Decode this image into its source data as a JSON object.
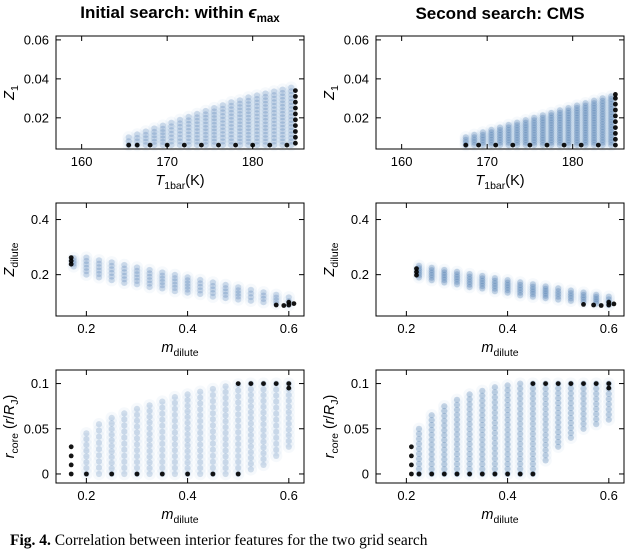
{
  "titles": {
    "left": [
      {
        "t": "Initial search: within "
      },
      {
        "t": "ϵ",
        "i": true
      },
      {
        "t": "max",
        "sub": true
      }
    ],
    "right": [
      {
        "t": "Second search: CMS"
      }
    ]
  },
  "caption": {
    "lead": "Fig. 4.",
    "text": "Correlation between interior features for the two grid search"
  },
  "colors": {
    "point": "#3a6ea8",
    "halo": "#5b8fc4",
    "black": "#000000",
    "axis": "#000000"
  },
  "chart_data": [
    {
      "type": "scatter",
      "panel": "initial-Z1-vs-T1bar",
      "xlabel_tokens": [
        {
          "t": "T",
          "i": true
        },
        {
          "t": "1bar",
          "sub": true
        },
        {
          "t": "(K)"
        }
      ],
      "ylabel_tokens": [
        {
          "t": "Z",
          "i": true
        },
        {
          "t": "1",
          "sub": true
        }
      ],
      "xlim": [
        157,
        186
      ],
      "ylim": [
        0.004,
        0.062
      ],
      "xticks": {
        "v": [
          160,
          170,
          180
        ],
        "l": [
          "160",
          "170",
          "180"
        ]
      },
      "yticks": {
        "v": [
          0.02,
          0.04,
          0.06
        ],
        "l": [
          "0.02",
          "0.04",
          "0.06"
        ]
      },
      "dy": 0.0018,
      "alpha": 0.2,
      "columns": [
        [
          165.5,
          0.006,
          0.01
        ],
        [
          166.5,
          0.006,
          0.0115
        ],
        [
          167.5,
          0.006,
          0.013
        ],
        [
          168.5,
          0.006,
          0.0145
        ],
        [
          169.5,
          0.006,
          0.016
        ],
        [
          170.5,
          0.006,
          0.0175
        ],
        [
          171.5,
          0.006,
          0.019
        ],
        [
          172.5,
          0.006,
          0.0205
        ],
        [
          173.5,
          0.006,
          0.022
        ],
        [
          174.5,
          0.006,
          0.0235
        ],
        [
          175.5,
          0.006,
          0.025
        ],
        [
          176.5,
          0.006,
          0.0265
        ],
        [
          177.5,
          0.006,
          0.028
        ],
        [
          178.5,
          0.006,
          0.029
        ],
        [
          179.5,
          0.006,
          0.0305
        ],
        [
          180.5,
          0.006,
          0.0315
        ],
        [
          181.5,
          0.006,
          0.0325
        ],
        [
          182.5,
          0.006,
          0.0335
        ],
        [
          183.5,
          0.006,
          0.0345
        ],
        [
          184.5,
          0.006,
          0.0355
        ]
      ],
      "black_points": [
        [
          165.5,
          0.006
        ],
        [
          166.5,
          0.006
        ],
        [
          168,
          0.006
        ],
        [
          170,
          0.006
        ],
        [
          172,
          0.006
        ],
        [
          174,
          0.006
        ],
        [
          176,
          0.006
        ],
        [
          178,
          0.006
        ],
        [
          180,
          0.006
        ],
        [
          182,
          0.006
        ],
        [
          184,
          0.006
        ],
        [
          185,
          0.007
        ],
        [
          185,
          0.01
        ],
        [
          185,
          0.013
        ],
        [
          185,
          0.016
        ],
        [
          185,
          0.019
        ],
        [
          185,
          0.022
        ],
        [
          185,
          0.025
        ],
        [
          185,
          0.028
        ],
        [
          185,
          0.031
        ],
        [
          185,
          0.034
        ]
      ]
    },
    {
      "type": "scatter",
      "panel": "cms-Z1-vs-T1bar",
      "xlabel_tokens": [
        {
          "t": "T",
          "i": true
        },
        {
          "t": "1bar",
          "sub": true
        },
        {
          "t": "(K)"
        }
      ],
      "ylabel_tokens": [
        {
          "t": "Z",
          "i": true
        },
        {
          "t": "1",
          "sub": true
        }
      ],
      "xlim": [
        157,
        186
      ],
      "ylim": [
        0.004,
        0.062
      ],
      "xticks": {
        "v": [
          160,
          170,
          180
        ],
        "l": [
          "160",
          "170",
          "180"
        ]
      },
      "yticks": {
        "v": [
          0.02,
          0.04,
          0.06
        ],
        "l": [
          "0.02",
          "0.04",
          "0.06"
        ]
      },
      "dy": 0.0013,
      "alpha": 0.26,
      "columns": [
        [
          167.5,
          0.006,
          0.01
        ],
        [
          168.5,
          0.006,
          0.0113
        ],
        [
          169.5,
          0.006,
          0.0125
        ],
        [
          170.5,
          0.006,
          0.0138
        ],
        [
          171.5,
          0.006,
          0.015
        ],
        [
          172.5,
          0.006,
          0.0163
        ],
        [
          173.5,
          0.006,
          0.0175
        ],
        [
          174.5,
          0.006,
          0.0188
        ],
        [
          175.5,
          0.006,
          0.02
        ],
        [
          176.5,
          0.006,
          0.0213
        ],
        [
          177.5,
          0.006,
          0.0225
        ],
        [
          178.5,
          0.006,
          0.0238
        ],
        [
          179.5,
          0.006,
          0.025
        ],
        [
          180.5,
          0.006,
          0.0263
        ],
        [
          181.5,
          0.006,
          0.0275
        ],
        [
          182.5,
          0.006,
          0.0288
        ],
        [
          183.5,
          0.006,
          0.03
        ],
        [
          184.5,
          0.006,
          0.031
        ]
      ],
      "black_points": [
        [
          167.5,
          0.006
        ],
        [
          169,
          0.006
        ],
        [
          171,
          0.006
        ],
        [
          173,
          0.006
        ],
        [
          175,
          0.006
        ],
        [
          177,
          0.006
        ],
        [
          179,
          0.006
        ],
        [
          181,
          0.006
        ],
        [
          183,
          0.006
        ],
        [
          185,
          0.006
        ],
        [
          185,
          0.009
        ],
        [
          185,
          0.012
        ],
        [
          185,
          0.015
        ],
        [
          185,
          0.018
        ],
        [
          185,
          0.021
        ],
        [
          185,
          0.024
        ],
        [
          185,
          0.027
        ],
        [
          185,
          0.03
        ],
        [
          185,
          0.032
        ]
      ]
    },
    {
      "type": "scatter",
      "panel": "initial-Zdilute-vs-mdilute",
      "xlabel_tokens": [
        {
          "t": "m",
          "i": true
        },
        {
          "t": "dilute",
          "sub": true
        }
      ],
      "ylabel_tokens": [
        {
          "t": "Z",
          "i": true
        },
        {
          "t": "dilute",
          "sub": true
        }
      ],
      "xlim": [
        0.14,
        0.63
      ],
      "ylim": [
        0.05,
        0.46
      ],
      "xticks": {
        "v": [
          0.2,
          0.4,
          0.6
        ],
        "l": [
          "0.2",
          "0.4",
          "0.6"
        ]
      },
      "yticks": {
        "v": [
          0.2,
          0.4
        ],
        "l": [
          "0.2",
          "0.4"
        ]
      },
      "dy": 0.012,
      "alpha": 0.2,
      "columns": [
        [
          0.175,
          0.23,
          0.26
        ],
        [
          0.2,
          0.2,
          0.262
        ],
        [
          0.225,
          0.19,
          0.252
        ],
        [
          0.25,
          0.18,
          0.245
        ],
        [
          0.275,
          0.17,
          0.235
        ],
        [
          0.3,
          0.165,
          0.226
        ],
        [
          0.325,
          0.155,
          0.217
        ],
        [
          0.35,
          0.15,
          0.208
        ],
        [
          0.375,
          0.14,
          0.199
        ],
        [
          0.4,
          0.135,
          0.19
        ],
        [
          0.425,
          0.13,
          0.181
        ],
        [
          0.45,
          0.12,
          0.172
        ],
        [
          0.475,
          0.115,
          0.163
        ],
        [
          0.5,
          0.11,
          0.154
        ],
        [
          0.525,
          0.105,
          0.145
        ],
        [
          0.55,
          0.1,
          0.136
        ],
        [
          0.575,
          0.095,
          0.127
        ],
        [
          0.6,
          0.09,
          0.118
        ]
      ],
      "black_points": [
        [
          0.17,
          0.238
        ],
        [
          0.17,
          0.25
        ],
        [
          0.17,
          0.262
        ],
        [
          0.575,
          0.09
        ],
        [
          0.59,
          0.088
        ],
        [
          0.6,
          0.09
        ],
        [
          0.6,
          0.1
        ],
        [
          0.61,
          0.095
        ]
      ]
    },
    {
      "type": "scatter",
      "panel": "cms-Zdilute-vs-mdilute",
      "xlabel_tokens": [
        {
          "t": "m",
          "i": true
        },
        {
          "t": "dilute",
          "sub": true
        }
      ],
      "ylabel_tokens": [
        {
          "t": "Z",
          "i": true
        },
        {
          "t": "dilute",
          "sub": true
        }
      ],
      "xlim": [
        0.14,
        0.63
      ],
      "ylim": [
        0.05,
        0.46
      ],
      "xticks": {
        "v": [
          0.2,
          0.4,
          0.6
        ],
        "l": [
          "0.2",
          "0.4",
          "0.6"
        ]
      },
      "yticks": {
        "v": [
          0.2,
          0.4
        ],
        "l": [
          "0.2",
          "0.4"
        ]
      },
      "dy": 0.009,
      "alpha": 0.26,
      "columns": [
        [
          0.225,
          0.19,
          0.232
        ],
        [
          0.25,
          0.18,
          0.225
        ],
        [
          0.275,
          0.172,
          0.217
        ],
        [
          0.3,
          0.165,
          0.21
        ],
        [
          0.325,
          0.155,
          0.202
        ],
        [
          0.35,
          0.15,
          0.195
        ],
        [
          0.375,
          0.14,
          0.187
        ],
        [
          0.4,
          0.135,
          0.18
        ],
        [
          0.425,
          0.125,
          0.172
        ],
        [
          0.45,
          0.12,
          0.165
        ],
        [
          0.475,
          0.115,
          0.157
        ],
        [
          0.5,
          0.11,
          0.15
        ],
        [
          0.525,
          0.105,
          0.142
        ],
        [
          0.55,
          0.1,
          0.135
        ],
        [
          0.575,
          0.095,
          0.127
        ],
        [
          0.6,
          0.09,
          0.12
        ]
      ],
      "black_points": [
        [
          0.22,
          0.198
        ],
        [
          0.22,
          0.21
        ],
        [
          0.22,
          0.222
        ],
        [
          0.55,
          0.092
        ],
        [
          0.57,
          0.09
        ],
        [
          0.585,
          0.088
        ],
        [
          0.6,
          0.09
        ],
        [
          0.6,
          0.1
        ],
        [
          0.61,
          0.094
        ]
      ]
    },
    {
      "type": "scatter",
      "panel": "initial-rcore-vs-mdilute",
      "xlabel_tokens": [
        {
          "t": "m",
          "i": true
        },
        {
          "t": "dilute",
          "sub": true
        }
      ],
      "ylabel_tokens": [
        {
          "t": "r",
          "i": true
        },
        {
          "t": "core",
          "sub": true
        },
        {
          "t": " ("
        },
        {
          "t": "r",
          "i": true
        },
        {
          "t": "/"
        },
        {
          "t": "R",
          "i": true
        },
        {
          "t": "J",
          "sub": true
        },
        {
          "t": ")"
        }
      ],
      "xlim": [
        0.14,
        0.63
      ],
      "ylim": [
        -0.01,
        0.115
      ],
      "xticks": {
        "v": [
          0.2,
          0.4,
          0.6
        ],
        "l": [
          "0.2",
          "0.4",
          "0.6"
        ]
      },
      "yticks": {
        "v": [
          0,
          0.05,
          0.1
        ],
        "l": [
          "0",
          "0.05",
          "0.1"
        ]
      },
      "dy": 0.0065,
      "alpha": 0.2,
      "columns": [
        [
          0.2,
          0.0,
          0.045
        ],
        [
          0.225,
          0.0,
          0.055
        ],
        [
          0.25,
          0.0,
          0.062
        ],
        [
          0.275,
          0.0,
          0.067
        ],
        [
          0.3,
          0.0,
          0.072
        ],
        [
          0.325,
          0.0,
          0.076
        ],
        [
          0.35,
          0.0,
          0.08
        ],
        [
          0.375,
          0.0,
          0.085
        ],
        [
          0.4,
          0.0,
          0.088
        ],
        [
          0.425,
          0.0,
          0.091
        ],
        [
          0.45,
          0.0,
          0.094
        ],
        [
          0.475,
          0.0,
          0.097
        ],
        [
          0.5,
          0.0,
          0.099
        ],
        [
          0.525,
          0.005,
          0.1
        ],
        [
          0.55,
          0.01,
          0.1
        ],
        [
          0.575,
          0.02,
          0.1
        ],
        [
          0.6,
          0.03,
          0.1
        ]
      ],
      "black_points": [
        [
          0.17,
          0.0
        ],
        [
          0.17,
          0.01
        ],
        [
          0.17,
          0.02
        ],
        [
          0.17,
          0.03
        ],
        [
          0.2,
          0.0
        ],
        [
          0.25,
          0.0
        ],
        [
          0.3,
          0.0
        ],
        [
          0.35,
          0.0
        ],
        [
          0.4,
          0.0
        ],
        [
          0.45,
          0.0
        ],
        [
          0.5,
          0.0
        ],
        [
          0.5,
          0.1
        ],
        [
          0.525,
          0.1
        ],
        [
          0.55,
          0.1
        ],
        [
          0.575,
          0.1
        ],
        [
          0.6,
          0.1
        ],
        [
          0.6,
          0.095
        ]
      ]
    },
    {
      "type": "scatter",
      "panel": "cms-rcore-vs-mdilute",
      "xlabel_tokens": [
        {
          "t": "m",
          "i": true
        },
        {
          "t": "dilute",
          "sub": true
        }
      ],
      "ylabel_tokens": [
        {
          "t": "r",
          "i": true
        },
        {
          "t": "core",
          "sub": true
        },
        {
          "t": " ("
        },
        {
          "t": "r",
          "i": true
        },
        {
          "t": "/"
        },
        {
          "t": "R",
          "i": true
        },
        {
          "t": "J",
          "sub": true
        },
        {
          "t": ")"
        }
      ],
      "xlim": [
        0.14,
        0.63
      ],
      "ylim": [
        -0.01,
        0.115
      ],
      "xticks": {
        "v": [
          0.2,
          0.4,
          0.6
        ],
        "l": [
          "0.2",
          "0.4",
          "0.6"
        ]
      },
      "yticks": {
        "v": [
          0,
          0.05,
          0.1
        ],
        "l": [
          "0",
          "0.05",
          "0.1"
        ]
      },
      "dy": 0.0055,
      "alpha": 0.27,
      "columns": [
        [
          0.225,
          0.0,
          0.05
        ],
        [
          0.25,
          0.0,
          0.065
        ],
        [
          0.275,
          0.0,
          0.075
        ],
        [
          0.3,
          0.0,
          0.082
        ],
        [
          0.325,
          0.0,
          0.088
        ],
        [
          0.35,
          0.0,
          0.092
        ],
        [
          0.375,
          0.0,
          0.096
        ],
        [
          0.4,
          0.0,
          0.098
        ],
        [
          0.425,
          0.0,
          0.1
        ],
        [
          0.45,
          0.0,
          0.1
        ],
        [
          0.475,
          0.015,
          0.1
        ],
        [
          0.5,
          0.03,
          0.1
        ],
        [
          0.525,
          0.04,
          0.1
        ],
        [
          0.55,
          0.05,
          0.1
        ],
        [
          0.575,
          0.055,
          0.1
        ],
        [
          0.6,
          0.06,
          0.1
        ]
      ],
      "black_points": [
        [
          0.21,
          0.0
        ],
        [
          0.21,
          0.01
        ],
        [
          0.21,
          0.02
        ],
        [
          0.21,
          0.03
        ],
        [
          0.225,
          0.0
        ],
        [
          0.25,
          0.0
        ],
        [
          0.275,
          0.0
        ],
        [
          0.3,
          0.0
        ],
        [
          0.325,
          0.0
        ],
        [
          0.35,
          0.0
        ],
        [
          0.375,
          0.0
        ],
        [
          0.4,
          0.0
        ],
        [
          0.425,
          0.0
        ],
        [
          0.45,
          0.0
        ],
        [
          0.45,
          0.1
        ],
        [
          0.475,
          0.1
        ],
        [
          0.5,
          0.1
        ],
        [
          0.525,
          0.1
        ],
        [
          0.55,
          0.1
        ],
        [
          0.575,
          0.1
        ],
        [
          0.6,
          0.1
        ],
        [
          0.6,
          0.095
        ]
      ]
    }
  ]
}
